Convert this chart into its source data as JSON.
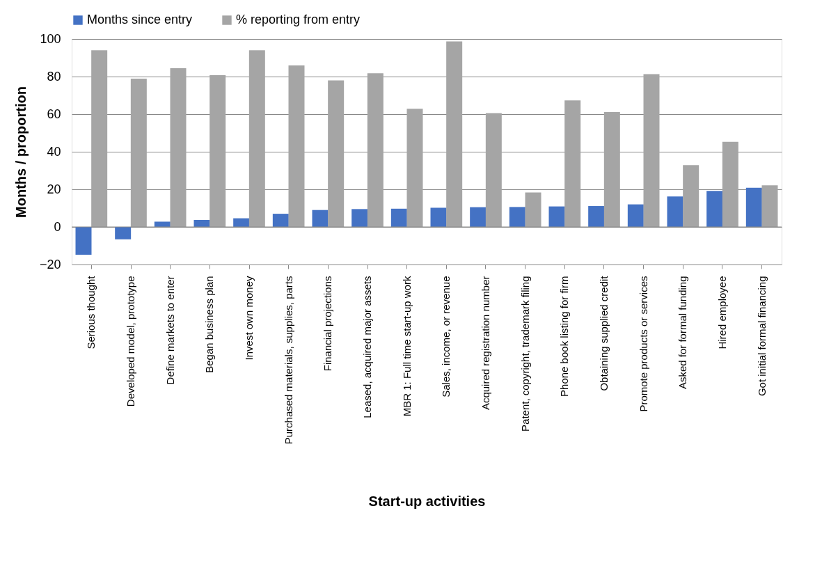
{
  "chart_data": {
    "type": "bar",
    "xlabel": "Start-up activities",
    "ylabel": "Months / proportion",
    "categories": [
      "Serious thought",
      "Developed model, prototype",
      "Define markets to enter",
      "Began business plan",
      "Invest own money",
      "Purchased materials, supplies, parts",
      "Financial projections",
      "Leased, acquired major assets",
      "MBR 1: Full time start-up work",
      "Sales, income, or revenue",
      "Acquired registration number",
      "Patent, copyright, trademark filing",
      "Phone book listing for firm",
      "Obtaining supplied credit",
      "Promote products or services",
      "Asked for formal funding",
      "Hired employee",
      "Got initial formal financing"
    ],
    "series": [
      {
        "name": "Months since entry",
        "color": "#4472c4",
        "values": [
          -14.8,
          -6.6,
          2.8,
          3.7,
          4.6,
          7.0,
          9.0,
          9.5,
          9.7,
          10.2,
          10.5,
          10.6,
          10.9,
          11.1,
          12.0,
          16.2,
          19.2,
          20.8
        ]
      },
      {
        "name": "% reporting from entry",
        "color": "#a5a5a5",
        "values": [
          94.0,
          78.9,
          84.4,
          80.7,
          94.0,
          85.9,
          78.0,
          81.8,
          62.9,
          98.7,
          60.6,
          18.3,
          67.3,
          61.1,
          81.3,
          32.9,
          45.3,
          22.1
        ]
      }
    ],
    "ylim": [
      -20,
      100
    ],
    "yticks": [
      -20,
      0,
      20,
      40,
      60,
      80,
      100
    ],
    "grid": "y",
    "legend": "top"
  }
}
